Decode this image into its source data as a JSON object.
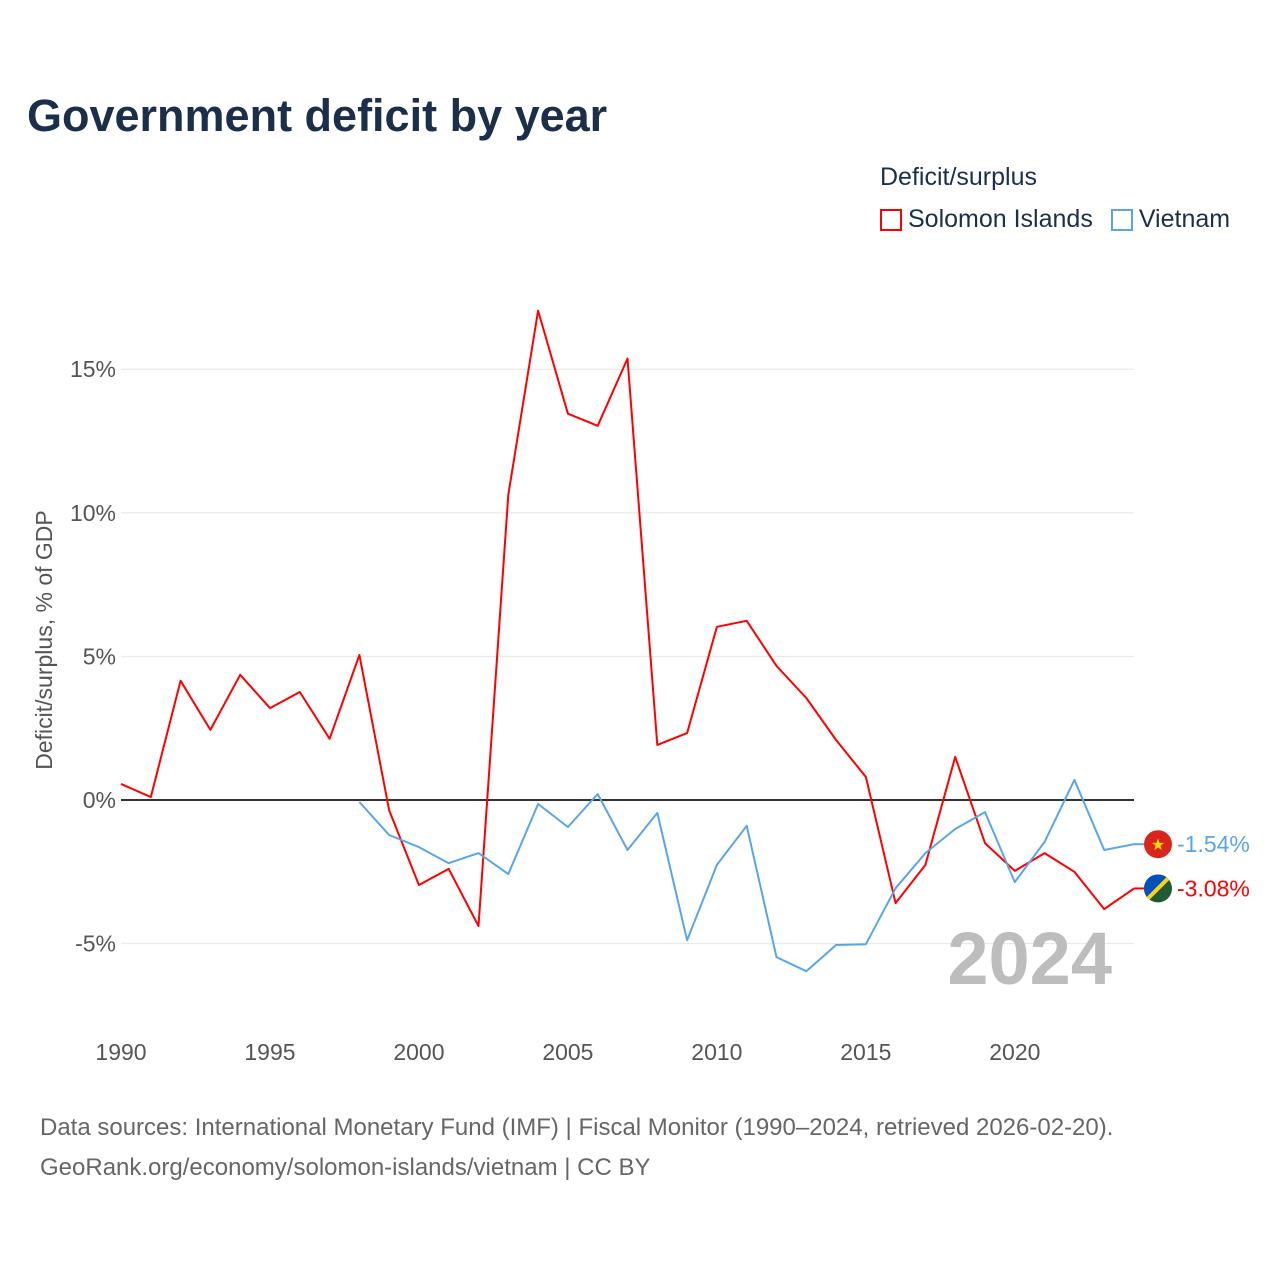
{
  "title": "Government deficit by year",
  "legend": {
    "title": "Deficit/surplus",
    "items": [
      {
        "label": "Solomon Islands",
        "color": "#ff0000"
      },
      {
        "label": "Vietnam",
        "color": "#5aa5e8"
      }
    ]
  },
  "chart_data": {
    "type": "line",
    "ylabel": "Deficit/surplus, % of GDP",
    "xlabel": "",
    "xlim": [
      1990,
      2024
    ],
    "ylim": [
      -8,
      18
    ],
    "x_ticks": [
      1990,
      1995,
      2000,
      2005,
      2010,
      2015,
      2020
    ],
    "y_ticks": [
      {
        "v": -5,
        "label": "-5%"
      },
      {
        "v": 0,
        "label": "0%"
      },
      {
        "v": 5,
        "label": "5%"
      },
      {
        "v": 10,
        "label": "10%"
      },
      {
        "v": 15,
        "label": "15%"
      }
    ],
    "year_label": "2024",
    "series": [
      {
        "name": "Solomon Islands",
        "color": "#ff0000",
        "start": 1990,
        "end_label": "-3.08%",
        "values": [
          0.56,
          0.1,
          4.15,
          2.44,
          4.36,
          3.2,
          3.76,
          2.13,
          5.05,
          -0.35,
          -2.96,
          -2.4,
          -4.39,
          10.63,
          17.04,
          13.45,
          13.03,
          15.37,
          1.92,
          2.33,
          6.03,
          6.24,
          4.67,
          3.55,
          2.09,
          0.8,
          -3.59,
          -2.26,
          1.5,
          -1.5,
          -2.47,
          -1.85,
          -2.5,
          -3.8,
          -3.08
        ]
      },
      {
        "name": "Vietnam",
        "color": "#5aa5e8",
        "start": 1998,
        "end_label": "-1.54%",
        "values": [
          -0.07,
          -1.22,
          -1.64,
          -2.2,
          -1.85,
          -2.58,
          -0.14,
          -0.94,
          0.21,
          -1.74,
          -0.45,
          -4.88,
          -2.26,
          -0.9,
          -5.47,
          -5.96,
          -5.05,
          -5.02,
          -3.07,
          -1.85,
          -1.01,
          -0.42,
          -2.86,
          -1.46,
          0.7,
          -1.74,
          -1.54
        ]
      }
    ]
  },
  "footer": {
    "line1": "Data sources: International Monetary Fund (IMF) | Fiscal Monitor (1990–2024, retrieved 2026-02-20).",
    "line2": "GeoRank.org/economy/solomon-islands/vietnam | CC BY"
  }
}
